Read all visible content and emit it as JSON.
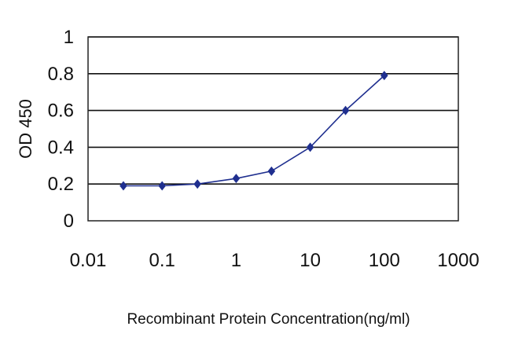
{
  "chart_data": {
    "type": "line",
    "title": "",
    "xlabel": "Recombinant Protein Concentration(ng/ml)",
    "ylabel": "OD 450",
    "x_scale": "log",
    "xlim": [
      0.01,
      1000
    ],
    "ylim": [
      0,
      1
    ],
    "x_ticks": [
      "0.01",
      "0.1",
      "1",
      "10",
      "100",
      "1000"
    ],
    "y_ticks": [
      "0",
      "0.2",
      "0.4",
      "0.6",
      "0.8",
      "1"
    ],
    "grid": "horizontal",
    "legend": "none",
    "series": [
      {
        "x": [
          0.03,
          0.1,
          0.3,
          1,
          3,
          10,
          30,
          100
        ],
        "y": [
          0.19,
          0.19,
          0.2,
          0.23,
          0.27,
          0.4,
          0.6,
          0.79
        ],
        "color": "#1f2f8f",
        "marker": "diamond"
      }
    ]
  }
}
